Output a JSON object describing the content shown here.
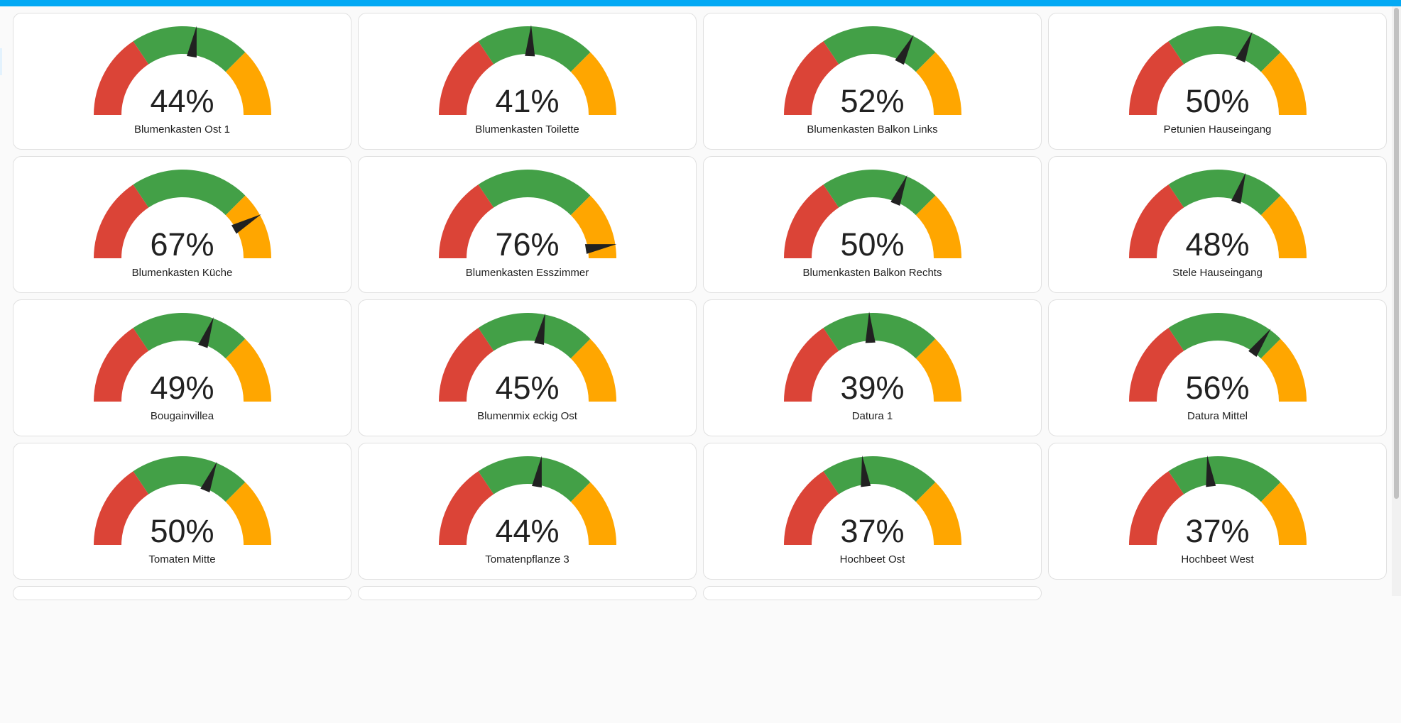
{
  "colors": {
    "header": "#03a9f4",
    "red": "#db4437",
    "green": "#43a047",
    "orange": "#ffa600",
    "needle": "#212121"
  },
  "severity": {
    "red_to": 0.25,
    "green_to": 0.6,
    "max": 0.8
  },
  "gauges": [
    {
      "name": "Blumenkasten Ost 1",
      "value": 44,
      "display": "44%"
    },
    {
      "name": "Blumenkasten Toilette",
      "value": 41,
      "display": "41%"
    },
    {
      "name": "Blumenkasten Balkon Links",
      "value": 52,
      "display": "52%"
    },
    {
      "name": "Petunien Hauseingang",
      "value": 50,
      "display": "50%"
    },
    {
      "name": "Blumenkasten Küche",
      "value": 67,
      "display": "67%"
    },
    {
      "name": "Blumenkasten Esszimmer",
      "value": 76,
      "display": "76%"
    },
    {
      "name": "Blumenkasten Balkon Rechts",
      "value": 50,
      "display": "50%"
    },
    {
      "name": "Stele Hauseingang",
      "value": 48,
      "display": "48%"
    },
    {
      "name": "Bougainvillea",
      "value": 49,
      "display": "49%"
    },
    {
      "name": "Blumenmix eckig Ost",
      "value": 45,
      "display": "45%"
    },
    {
      "name": "Datura 1",
      "value": 39,
      "display": "39%"
    },
    {
      "name": "Datura Mittel",
      "value": 56,
      "display": "56%"
    },
    {
      "name": "Tomaten Mitte",
      "value": 50,
      "display": "50%"
    },
    {
      "name": "Tomatenpflanze 3",
      "value": 44,
      "display": "44%"
    },
    {
      "name": "Hochbeet Ost",
      "value": 37,
      "display": "37%"
    },
    {
      "name": "Hochbeet West",
      "value": 37,
      "display": "37%"
    }
  ]
}
